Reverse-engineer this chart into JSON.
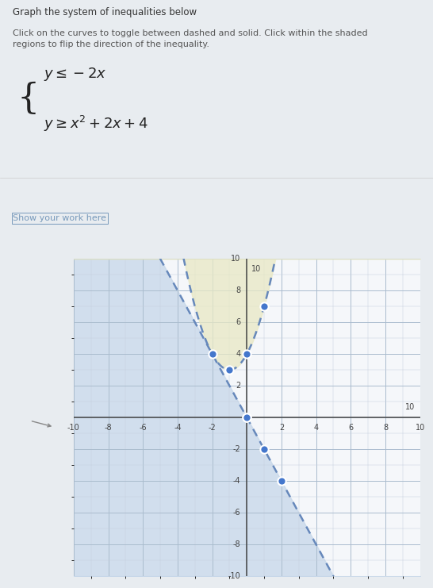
{
  "title_text": "Graph the system of inequalities below",
  "subtitle_text": "Click on the curves to toggle between dashed and solid. Click within the shaded\nregions to flip the direction of the inequality.",
  "work_label": "Show your work here",
  "xmin": -10,
  "xmax": 10,
  "ymin": -10,
  "ymax": 10,
  "bg_color": "#e8ecf0",
  "plot_bg": "#f5f7fa",
  "grid_minor_color": "#c5d0de",
  "grid_major_color": "#aabcce",
  "shade_blue": "#c2d4e8",
  "shade_blue_alpha": 0.7,
  "shade_yellow": "#e8e8c4",
  "shade_yellow_alpha": 0.75,
  "curve_color": "#6688bb",
  "curve_lw": 1.8,
  "dot_color": "#4477cc",
  "dot_size": 55,
  "axis_color": "#444444",
  "tick_color": "#444444",
  "tick_fontsize": 7,
  "arrow_color": "#444444",
  "text_color": "#333333",
  "subtitle_color": "#555555",
  "work_color": "#7799bb",
  "eq_color": "#222222",
  "note_fontsize": 8,
  "title_fontsize": 8.5,
  "eq_fontsize": 13
}
